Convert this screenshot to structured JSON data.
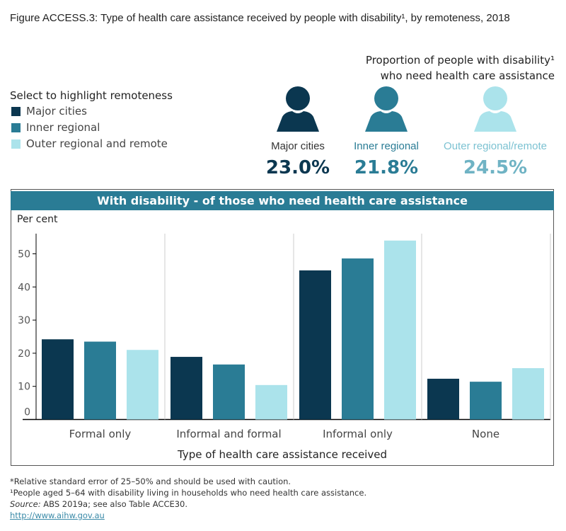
{
  "title": "Figure ACCESS.3: Type of health care assistance received by people with disability¹, by remoteness, 2018",
  "proportion_title": [
    "Proportion of people with disability¹",
    "who need health care assistance"
  ],
  "legend": {
    "title": "Select to highlight remoteness",
    "items": [
      {
        "label": "Major cities",
        "color": "#0b3750"
      },
      {
        "label": "Inner regional",
        "color": "#2a7c95"
      },
      {
        "label": "Outer regional and remote",
        "color": "#abe3eb"
      }
    ]
  },
  "proportions": [
    {
      "label": "Major cities",
      "value": "23.0%",
      "icon": "person-icon",
      "color": "#0b3750",
      "label_color": "#333333"
    },
    {
      "label": "Inner regional",
      "value": "21.8%",
      "icon": "person-icon",
      "color": "#2a7c95",
      "label_color": "#2a7c95"
    },
    {
      "label": "Outer regional/remote",
      "value": "24.5%",
      "icon": "person-icon",
      "color": "#abe3eb",
      "label_color": "#7cc2d2",
      "value_color": "#6fb3c4"
    }
  ],
  "chart_data": {
    "type": "bar",
    "title": "With disability - of those who need health care assistance",
    "ylabel": "Per cent",
    "xlabel": "Type of health care assistance received",
    "categories": [
      "Formal only",
      "Informal and formal",
      "Informal only",
      "None"
    ],
    "series": [
      {
        "name": "Major cities",
        "color": "#0b3750",
        "values": [
          24.2,
          18.9,
          45.0,
          12.3
        ]
      },
      {
        "name": "Inner regional",
        "color": "#2a7c95",
        "values": [
          23.5,
          16.6,
          48.6,
          11.4
        ]
      },
      {
        "name": "Outer regional and remote",
        "color": "#abe3eb",
        "values": [
          21.0,
          10.4,
          54.0,
          15.5
        ]
      }
    ],
    "yticks": [
      0,
      10,
      20,
      30,
      40,
      50
    ],
    "ylim": [
      0,
      56
    ],
    "grid": false
  },
  "footnotes": {
    "rse": "*Relative standard error of 25–50% and should be used with caution.",
    "note1": "¹People aged 5–64 with disability living in households who need health care assistance.",
    "source_label": "Source:",
    "source_text": " ABS 2019a; see also Table ACCE30.",
    "link": "http://www.aihw.gov.au"
  }
}
